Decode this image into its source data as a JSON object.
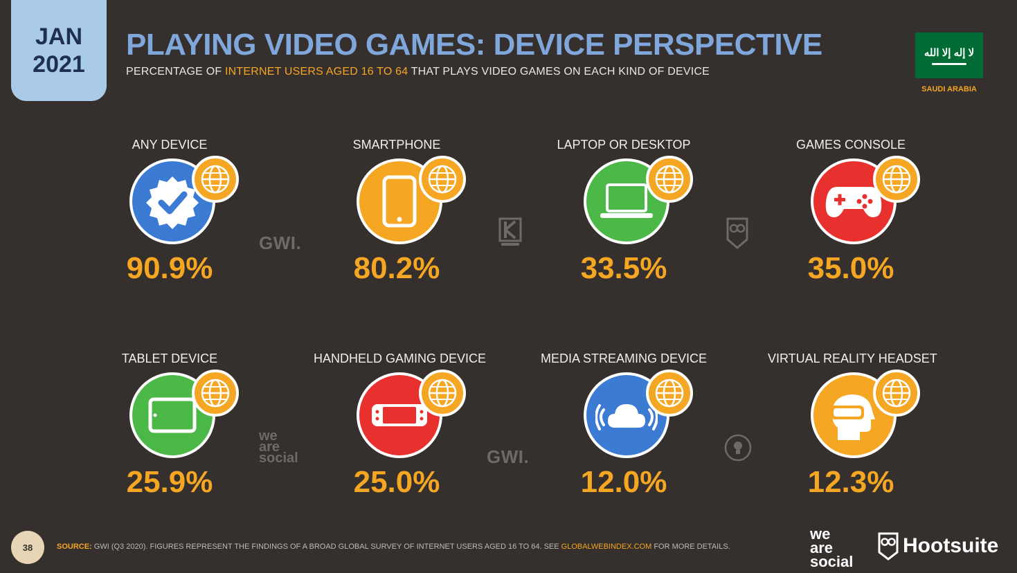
{
  "header": {
    "date_month": "JAN",
    "date_year": "2021",
    "title": "PLAYING VIDEO GAMES: DEVICE PERSPECTIVE",
    "subtitle_pre": "PERCENTAGE OF ",
    "subtitle_highlight": "INTERNET USERS AGED 16 TO 64",
    "subtitle_post": " THAT PLAYS VIDEO GAMES ON EACH KIND OF DEVICE"
  },
  "flag": {
    "country": "SAUDI ARABIA",
    "script": "لا إله إلا الله",
    "color": "#006c35"
  },
  "devices": [
    {
      "label": "ANY DEVICE",
      "value": "90.9%",
      "icon": "verified-badge-icon",
      "color": "#3b7bd4"
    },
    {
      "label": "SMARTPHONE",
      "value": "80.2%",
      "icon": "smartphone-icon",
      "color": "#f5a623"
    },
    {
      "label": "LAPTOP OR DESKTOP",
      "value": "33.5%",
      "icon": "laptop-icon",
      "color": "#4cb848"
    },
    {
      "label": "GAMES CONSOLE",
      "value": "35.0%",
      "icon": "gamepad-icon",
      "color": "#e8312f"
    },
    {
      "label": "TABLET DEVICE",
      "value": "25.9%",
      "icon": "tablet-icon",
      "color": "#4cb848"
    },
    {
      "label": "HANDHELD GAMING DEVICE",
      "value": "25.0%",
      "icon": "handheld-console-icon",
      "color": "#e8312f"
    },
    {
      "label": "MEDIA STREAMING DEVICE",
      "value": "12.0%",
      "icon": "cloud-stream-icon",
      "color": "#3b7bd4"
    },
    {
      "label": "VIRTUAL REALITY HEADSET",
      "value": "12.3%",
      "icon": "vr-headset-icon",
      "color": "#f5a623"
    }
  ],
  "watermarks": {
    "gwi": "GWI.",
    "we": "we",
    "are": "are",
    "social": "social"
  },
  "footer": {
    "page_number": "38",
    "source_label": "SOURCE:",
    "source_text": " GWI (Q3 2020). FIGURES REPRESENT THE FINDINGS OF A BROAD GLOBAL SURVEY OF INTERNET USERS AGED 16 TO 64. SEE ",
    "source_link": "GLOBALWEBINDEX.COM",
    "source_tail": " FOR MORE DETAILS.",
    "brand_we": "we",
    "brand_are": "are",
    "brand_social": "social",
    "brand_hootsuite": "Hootsuite"
  },
  "colors": {
    "background": "#35302d",
    "accent": "#f5a623",
    "title": "#7fa7dc"
  }
}
